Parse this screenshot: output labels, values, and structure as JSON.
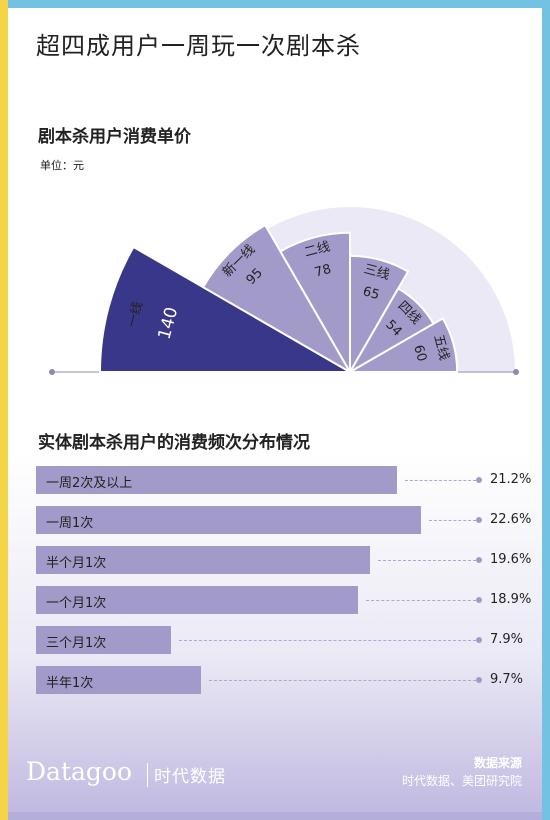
{
  "title": "超四成用户一周玩一次剧本杀",
  "colors": {
    "stripe_top": "#74c2e3",
    "stripe_bottom": "#b4aedb",
    "accent_yellow": "#f5d547",
    "bar": "#a29bca",
    "highlight": "#39378a",
    "fan_bg": "#ebe9f5"
  },
  "section1": {
    "title": "剧本杀用户消费单价",
    "unit": "单位：元"
  },
  "section2": {
    "title": "实体剧本杀用户的消费频次分布情况"
  },
  "chart_data": [
    {
      "type": "bar",
      "layout": "radial",
      "title": "剧本杀用户消费单价",
      "unit": "单位：元",
      "categories": [
        "一线",
        "新一线",
        "二线",
        "三线",
        "四线",
        "五线"
      ],
      "values": [
        140,
        95,
        78,
        65,
        54,
        60
      ],
      "highlight": "一线"
    },
    {
      "type": "bar",
      "orientation": "horizontal",
      "title": "实体剧本杀用户的消费频次分布情况",
      "categories": [
        "一周2次及以上",
        "一周1次",
        "半个月1次",
        "一个月1次",
        "三个月1次",
        "半年1次"
      ],
      "values": [
        21.2,
        22.6,
        19.6,
        18.9,
        7.9,
        9.7
      ],
      "value_labels": [
        "21.2%",
        "22.6%",
        "19.6%",
        "18.9%",
        "7.9%",
        "9.7%"
      ]
    }
  ],
  "footer": {
    "logo": "Datagoo",
    "logo_cn": "时代数据",
    "source_title": "数据来源",
    "source_text": "时代数据、美团研究院"
  }
}
